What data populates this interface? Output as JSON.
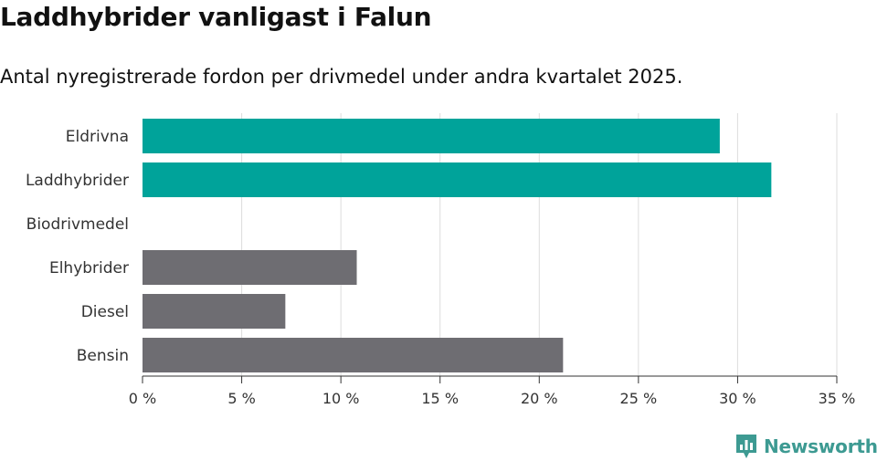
{
  "header": {
    "title": "Laddhybrider vanligast i Falun",
    "subtitle": "Antal nyregistrerade fordon per drivmedel under andra kvartalet 2025."
  },
  "colors": {
    "highlight": "#00a39a",
    "default": "#6e6d72",
    "grid": "#dddddd",
    "axis": "#333333",
    "brand": "#3d9a92"
  },
  "chart_data": {
    "type": "bar",
    "orientation": "horizontal",
    "categories": [
      "Eldrivna",
      "Laddhybrider",
      "Biodrivmedel",
      "Elhybrider",
      "Diesel",
      "Bensin"
    ],
    "values": [
      29.1,
      31.7,
      0,
      10.8,
      7.2,
      21.2
    ],
    "highlight": [
      true,
      true,
      false,
      false,
      false,
      false
    ],
    "xlim": [
      0,
      35
    ],
    "xticks": [
      0,
      5,
      10,
      15,
      20,
      25,
      30,
      35
    ],
    "tick_suffix": " %",
    "grid": true
  },
  "brand": {
    "name": "Newsworthy",
    "icon": "bar-chart-bubble-icon"
  }
}
